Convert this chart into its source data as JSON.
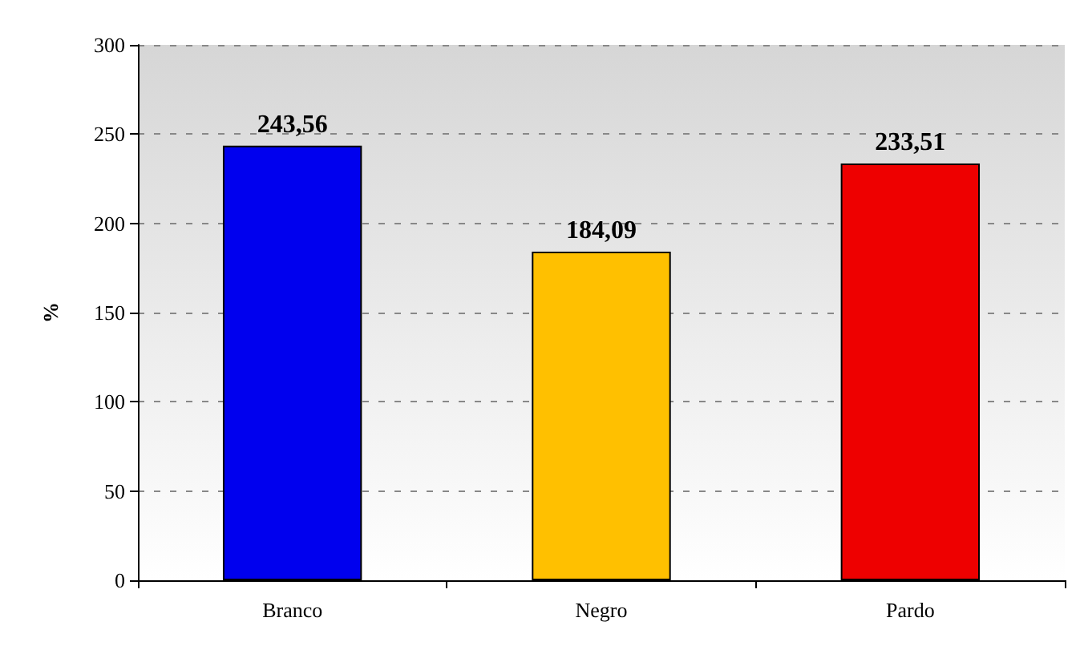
{
  "chart_data": {
    "type": "bar",
    "ylabel": "%",
    "categories": [
      "Branco",
      "Negro",
      "Pardo"
    ],
    "values": [
      243.56,
      184.09,
      233.51
    ],
    "colors": [
      "#0000ee",
      "#ffc000",
      "#ee0000"
    ],
    "value_labels": [
      "243,56",
      "184,09",
      "233,51"
    ],
    "ylim": [
      0,
      300
    ],
    "yticks": [
      0,
      50,
      100,
      150,
      200,
      250,
      300
    ],
    "grid": "y"
  }
}
